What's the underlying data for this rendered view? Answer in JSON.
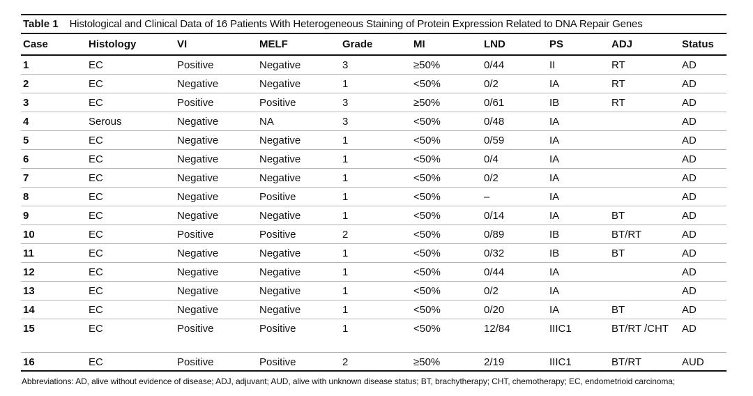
{
  "caption": {
    "label": "Table 1",
    "title": "Histological and Clinical Data of 16 Patients With Heterogeneous Staining of Protein Expression Related to DNA Repair Genes"
  },
  "columns": [
    "Case",
    "Histology",
    "VI",
    "MELF",
    "Grade",
    "MI",
    "LND",
    "PS",
    "ADJ",
    "Status"
  ],
  "rows": [
    [
      "1",
      "EC",
      "Positive",
      "Negative",
      "3",
      "≥50%",
      "0/44",
      "II",
      "RT",
      "AD"
    ],
    [
      "2",
      "EC",
      "Negative",
      "Negative",
      "1",
      "<50%",
      "0/2",
      "IA",
      "RT",
      "AD"
    ],
    [
      "3",
      "EC",
      "Positive",
      "Positive",
      "3",
      "≥50%",
      "0/61",
      "IB",
      "RT",
      "AD"
    ],
    [
      "4",
      "Serous",
      "Negative",
      "NA",
      "3",
      "<50%",
      "0/48",
      "IA",
      "",
      "AD"
    ],
    [
      "5",
      "EC",
      "Negative",
      "Negative",
      "1",
      "<50%",
      "0/59",
      "IA",
      "",
      "AD"
    ],
    [
      "6",
      "EC",
      "Negative",
      "Negative",
      "1",
      "<50%",
      "0/4",
      "IA",
      "",
      "AD"
    ],
    [
      "7",
      "EC",
      "Negative",
      "Negative",
      "1",
      "<50%",
      "0/2",
      "IA",
      "",
      "AD"
    ],
    [
      "8",
      "EC",
      "Negative",
      "Positive",
      "1",
      "<50%",
      "–",
      "IA",
      "",
      "AD"
    ],
    [
      "9",
      "EC",
      "Negative",
      "Negative",
      "1",
      "<50%",
      "0/14",
      "IA",
      "BT",
      "AD"
    ],
    [
      "10",
      "EC",
      "Positive",
      "Positive",
      "2",
      "<50%",
      "0/89",
      "IB",
      "BT/RT",
      "AD"
    ],
    [
      "11",
      "EC",
      "Negative",
      "Negative",
      "1",
      "<50%",
      "0/32",
      "IB",
      "BT",
      "AD"
    ],
    [
      "12",
      "EC",
      "Negative",
      "Negative",
      "1",
      "<50%",
      "0/44",
      "IA",
      "",
      "AD"
    ],
    [
      "13",
      "EC",
      "Negative",
      "Negative",
      "1",
      "<50%",
      "0/2",
      "IA",
      "",
      "AD"
    ],
    [
      "14",
      "EC",
      "Negative",
      "Negative",
      "1",
      "<50%",
      "0/20",
      "IA",
      "BT",
      "AD"
    ],
    [
      "15",
      "EC",
      "Positive",
      "Positive",
      "1",
      "<50%",
      "12/84",
      "IIIC1",
      "BT/RT /CHT",
      "AD"
    ],
    [
      "16",
      "EC",
      "Positive",
      "Positive",
      "2",
      "≥50%",
      "2/19",
      "IIIC1",
      "BT/RT",
      "AUD"
    ]
  ],
  "abbreviations": "Abbreviations: AD, alive without evidence of disease; ADJ, adjuvant; AUD, alive with unknown disease status; BT, brachytherapy; CHT, chemotherapy; EC, endometrioid carcinoma;"
}
